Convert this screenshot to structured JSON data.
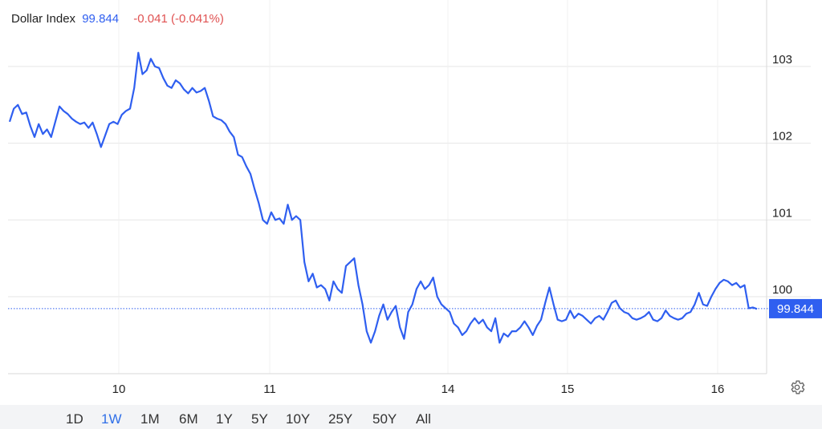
{
  "header": {
    "title": "Dollar Index",
    "price": "99.844",
    "change": "-0.041 (-0.041%)"
  },
  "colors": {
    "line": "#2f5ff0",
    "negative": "#e05252",
    "price_tag_bg": "#2f5ff0",
    "grid": "#e6e6e6",
    "range_active": "#2f6fe8"
  },
  "range_buttons": [
    "1D",
    "1W",
    "1M",
    "6M",
    "1Y",
    "5Y",
    "10Y",
    "25Y",
    "50Y",
    "All"
  ],
  "active_range": "1W",
  "settings_icon": "gear-icon",
  "chart_data": {
    "type": "line",
    "ylim": [
      99.3,
      103.8
    ],
    "y_ticks": [
      100,
      101,
      102,
      103
    ],
    "y_tick_labels": [
      "100",
      "101",
      "102",
      "103"
    ],
    "x_ticks": [
      "10",
      "11",
      "14",
      "15",
      "16"
    ],
    "grid": true,
    "last_value": 99.844,
    "last_value_label": "99.844",
    "series": [
      {
        "values": [
          102.28,
          102.45,
          102.5,
          102.38,
          102.4,
          102.22,
          102.08,
          102.25,
          102.12,
          102.18,
          102.08,
          102.28,
          102.48,
          102.42,
          102.38,
          102.32,
          102.28,
          102.25,
          102.27,
          102.2,
          102.27,
          102.12,
          101.95,
          102.1,
          102.25,
          102.28,
          102.25,
          102.37,
          102.42,
          102.45,
          102.72,
          103.18,
          102.9,
          102.95,
          103.1,
          103.0,
          102.98,
          102.85,
          102.75,
          102.72,
          102.82,
          102.78,
          102.7,
          102.65,
          102.72,
          102.66,
          102.68,
          102.72,
          102.55,
          102.35,
          102.32,
          102.3,
          102.25,
          102.15,
          102.08,
          101.85,
          101.82,
          101.7,
          101.6,
          101.4,
          101.22,
          101.0,
          100.95,
          101.1,
          101.0,
          101.02,
          100.95,
          101.2,
          101.0,
          101.05,
          101.0,
          100.45,
          100.2,
          100.3,
          100.12,
          100.15,
          100.1,
          99.95,
          100.2,
          100.1,
          100.05,
          100.4,
          100.45,
          100.5,
          100.15,
          99.9,
          99.55,
          99.4,
          99.55,
          99.75,
          99.9,
          99.7,
          99.8,
          99.88,
          99.6,
          99.45,
          99.8,
          99.9,
          100.1,
          100.2,
          100.1,
          100.15,
          100.25,
          100.0,
          99.9,
          99.85,
          99.8,
          99.65,
          99.6,
          99.5,
          99.55,
          99.65,
          99.72,
          99.65,
          99.7,
          99.6,
          99.55,
          99.72,
          99.4,
          99.52,
          99.48,
          99.55,
          99.55,
          99.6,
          99.68,
          99.6,
          99.5,
          99.62,
          99.7,
          99.92,
          100.12,
          99.9,
          99.7,
          99.68,
          99.7,
          99.82,
          99.72,
          99.78,
          99.75,
          99.7,
          99.65,
          99.72,
          99.75,
          99.7,
          99.8,
          99.92,
          99.95,
          99.85,
          99.8,
          99.78,
          99.72,
          99.7,
          99.72,
          99.75,
          99.8,
          99.7,
          99.68,
          99.72,
          99.82,
          99.75,
          99.72,
          99.7,
          99.72,
          99.78,
          99.8,
          99.9,
          100.05,
          99.9,
          99.88,
          100.0,
          100.1,
          100.18,
          100.22,
          100.2,
          100.15,
          100.18,
          100.12,
          100.15,
          99.85,
          99.86,
          99.84
        ]
      }
    ]
  }
}
